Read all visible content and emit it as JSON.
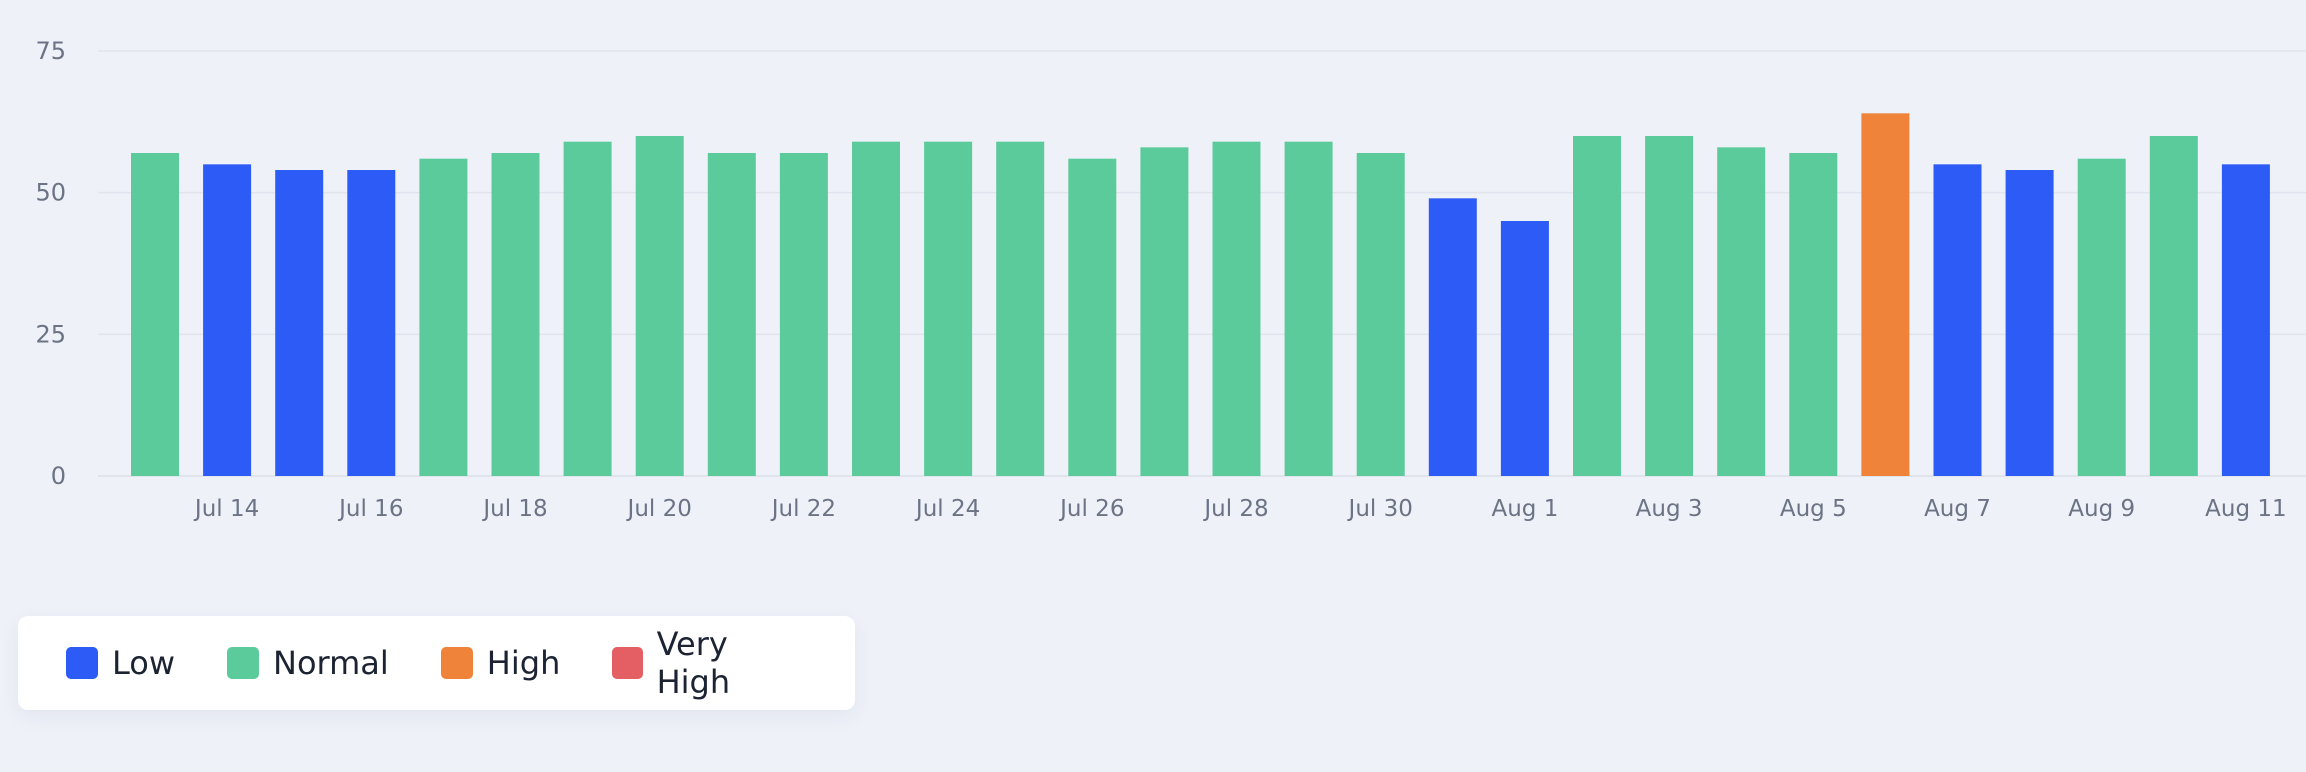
{
  "chart_data": {
    "type": "bar",
    "ylim": [
      0,
      75
    ],
    "yticks": [
      0,
      25,
      50,
      75
    ],
    "categories": [
      "Jul 13",
      "Jul 14",
      "Jul 15",
      "Jul 16",
      "Jul 17",
      "Jul 18",
      "Jul 19",
      "Jul 20",
      "Jul 21",
      "Jul 22",
      "Jul 23",
      "Jul 24",
      "Jul 25",
      "Jul 26",
      "Jul 27",
      "Jul 28",
      "Jul 29",
      "Jul 30",
      "Jul 31",
      "Aug 1",
      "Aug 2",
      "Aug 3",
      "Aug 4",
      "Aug 5",
      "Aug 6",
      "Aug 7",
      "Aug 8",
      "Aug 9",
      "Aug 10",
      "Aug 11"
    ],
    "x_tick_labels": [
      "",
      "Jul 14",
      "",
      "Jul 16",
      "",
      "Jul 18",
      "",
      "Jul 20",
      "",
      "Jul 22",
      "",
      "Jul 24",
      "",
      "Jul 26",
      "",
      "Jul 28",
      "",
      "Jul 30",
      "",
      "Aug 1",
      "",
      "Aug 3",
      "",
      "Aug 5",
      "",
      "Aug 7",
      "",
      "Aug 9",
      "",
      "Aug 11"
    ],
    "values": [
      57,
      55,
      54,
      54,
      56,
      57,
      59,
      60,
      57,
      57,
      59,
      59,
      59,
      56,
      58,
      59,
      59,
      57,
      49,
      45,
      60,
      60,
      58,
      57,
      64,
      55,
      54,
      56,
      60,
      55
    ],
    "levels": [
      "Normal",
      "Low",
      "Low",
      "Low",
      "Normal",
      "Normal",
      "Normal",
      "Normal",
      "Normal",
      "Normal",
      "Normal",
      "Normal",
      "Normal",
      "Normal",
      "Normal",
      "Normal",
      "Normal",
      "Normal",
      "Low",
      "Low",
      "Normal",
      "Normal",
      "Normal",
      "Normal",
      "High",
      "Low",
      "Low",
      "Normal",
      "Normal",
      "Low"
    ],
    "grid": true,
    "legend_position": "bottom-left"
  },
  "legend": {
    "items": [
      {
        "label": "Low",
        "color": "#2d5bf5"
      },
      {
        "label": "Normal",
        "color": "#5ccb9b"
      },
      {
        "label": "High",
        "color": "#ef8339"
      },
      {
        "label": "Very High",
        "color": "#e45f63"
      }
    ]
  },
  "colors": {
    "Low": "#2d5bf5",
    "Normal": "#5ccb9b",
    "High": "#ef8339",
    "Very High": "#e45f63",
    "grid": "#e0e4ec",
    "axis_text": "#6b7385"
  }
}
